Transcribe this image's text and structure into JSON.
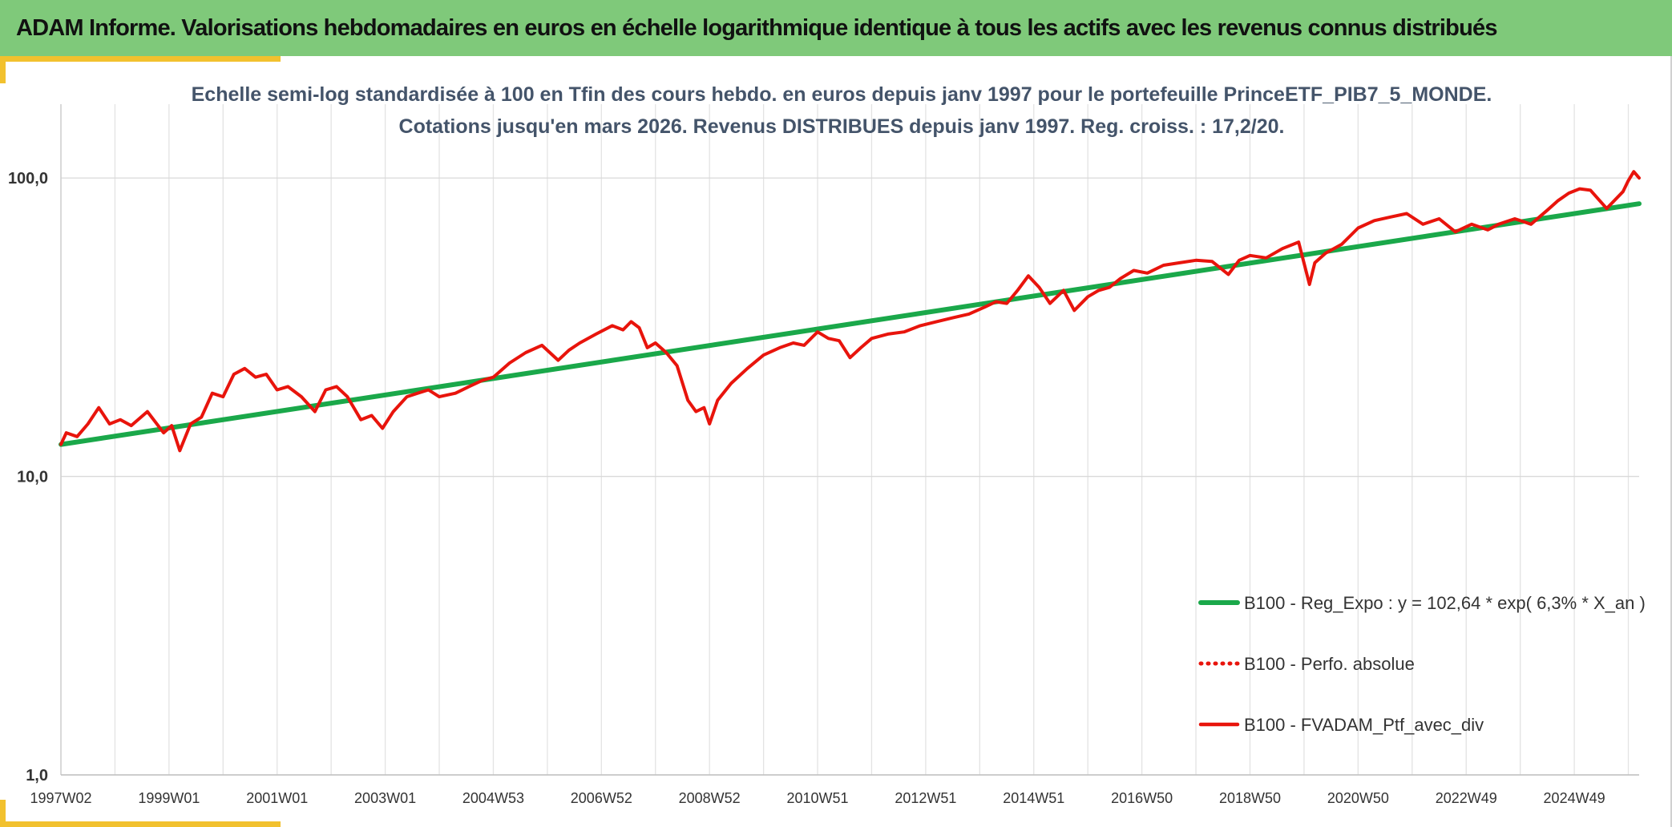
{
  "header": {
    "title": "ADAM Informe. Valorisations hebdomadaires en euros en échelle logarithmique identique à tous les actifs avec les revenus connus distribués"
  },
  "colors": {
    "header_bg": "#7fc97a",
    "accent": "#f2c12e",
    "regression": "#1aa84a",
    "series": "#e8140c",
    "title_text": "#44546a"
  },
  "chart_data": {
    "type": "line",
    "title_lines": [
      "Echelle semi-log standardisée à 100 en Tfin des cours hebdo. en euros depuis janv 1997 pour le portefeuille PrinceETF_PIB7_5_MONDE.",
      "Cotations jusqu'en mars 2026. Revenus DISTRIBUES depuis janv 1997. Reg. croiss. : 17,2/20."
    ],
    "y_scale": "log",
    "ylim": [
      1,
      200
    ],
    "y_ticks": [
      1,
      10,
      100
    ],
    "y_tick_labels": [
      "1,0",
      "10,0",
      "100,0"
    ],
    "x_range": [
      1997.0,
      2026.2
    ],
    "x_tick_positions": [
      1997.0,
      1999.0,
      2001.0,
      2003.0,
      2005.0,
      2007.0,
      2009.0,
      2011.0,
      2013.0,
      2015.0,
      2017.0,
      2019.0,
      2021.0,
      2023.0,
      2025.0
    ],
    "x_tick_labels": [
      "1997W02",
      "1999W01",
      "2001W01",
      "2003W01",
      "2004W53",
      "2006W52",
      "2008W52",
      "2010W51",
      "2012W51",
      "2014W51",
      "2016W50",
      "2018W50",
      "2020W50",
      "2022W49",
      "2024W49"
    ],
    "grid": "vertical",
    "legend_position": "bottom-right",
    "series": [
      {
        "name": "B100 - Reg_Expo : y = 102,64 * exp( 6,3% *  X_an )",
        "style": "solid-thick",
        "color": "#1aa84a",
        "x": [
          1997.0,
          2026.2
        ],
        "y": [
          12.8,
          82.0
        ]
      },
      {
        "name": "B100 - Perfo. absolue",
        "style": "dotted",
        "color": "#e8140c",
        "x": [],
        "y": []
      },
      {
        "name": "B100 - FVADAM_Ptf_avec_div",
        "style": "solid",
        "color": "#e8140c",
        "x": [
          1997.0,
          1997.1,
          1997.3,
          1997.5,
          1997.7,
          1997.9,
          1998.1,
          1998.3,
          1998.6,
          1998.75,
          1998.9,
          1999.05,
          1999.2,
          1999.4,
          1999.6,
          1999.8,
          2000.0,
          2000.2,
          2000.4,
          2000.6,
          2000.8,
          2001.0,
          2001.2,
          2001.45,
          2001.7,
          2001.9,
          2002.1,
          2002.3,
          2002.55,
          2002.75,
          2002.95,
          2003.15,
          2003.4,
          2003.6,
          2003.8,
          2004.0,
          2004.3,
          2004.55,
          2004.8,
          2005.0,
          2005.3,
          2005.6,
          2005.9,
          2006.2,
          2006.4,
          2006.6,
          2006.9,
          2007.2,
          2007.4,
          2007.55,
          2007.7,
          2007.85,
          2008.0,
          2008.2,
          2008.4,
          2008.6,
          2008.75,
          2008.9,
          2009.0,
          2009.15,
          2009.4,
          2009.7,
          2010.0,
          2010.3,
          2010.55,
          2010.75,
          2011.0,
          2011.2,
          2011.4,
          2011.6,
          2011.8,
          2012.0,
          2012.3,
          2012.6,
          2012.9,
          2013.2,
          2013.5,
          2013.8,
          2014.1,
          2014.3,
          2014.5,
          2014.7,
          2014.9,
          2015.1,
          2015.3,
          2015.55,
          2015.75,
          2016.0,
          2016.2,
          2016.4,
          2016.6,
          2016.85,
          2017.1,
          2017.4,
          2017.7,
          2018.0,
          2018.3,
          2018.6,
          2018.8,
          2019.0,
          2019.3,
          2019.6,
          2019.9,
          2020.1,
          2020.2,
          2020.4,
          2020.7,
          2021.0,
          2021.3,
          2021.6,
          2021.9,
          2022.2,
          2022.5,
          2022.8,
          2023.1,
          2023.4,
          2023.6,
          2023.9,
          2024.2,
          2024.5,
          2024.7,
          2024.9,
          2025.1,
          2025.3,
          2025.6,
          2025.9,
          2026.0,
          2026.1,
          2026.2
        ],
        "y": [
          12.8,
          14.0,
          13.6,
          15.0,
          17.0,
          15.0,
          15.5,
          14.8,
          16.5,
          15.2,
          14.0,
          14.8,
          12.2,
          15.0,
          15.8,
          19.0,
          18.5,
          22.0,
          23.0,
          21.5,
          22.0,
          19.5,
          20.0,
          18.5,
          16.5,
          19.5,
          20.0,
          18.5,
          15.5,
          16.0,
          14.5,
          16.5,
          18.5,
          19.0,
          19.5,
          18.5,
          19.0,
          20.0,
          21.0,
          21.5,
          24.0,
          26.0,
          27.5,
          24.5,
          26.5,
          28.0,
          30.0,
          32.0,
          31.0,
          33.0,
          31.5,
          27.0,
          28.0,
          26.0,
          23.5,
          18.0,
          16.5,
          17.0,
          15.0,
          18.0,
          20.5,
          23.0,
          25.5,
          27.0,
          28.0,
          27.5,
          30.5,
          29.0,
          28.5,
          25.0,
          27.0,
          29.0,
          30.0,
          30.5,
          32.0,
          33.0,
          34.0,
          35.0,
          37.0,
          38.5,
          38.0,
          42.0,
          47.0,
          43.0,
          38.0,
          42.0,
          36.0,
          40.0,
          42.0,
          43.0,
          46.0,
          49.0,
          48.0,
          51.0,
          52.0,
          53.0,
          52.5,
          47.5,
          53.0,
          55.0,
          54.0,
          58.0,
          61.0,
          44.0,
          52.0,
          56.0,
          60.0,
          68.0,
          72.0,
          74.0,
          76.0,
          70.0,
          73.0,
          66.0,
          70.0,
          67.0,
          70.0,
          73.0,
          70.0,
          78.0,
          84.0,
          89.0,
          92.0,
          91.0,
          79.0,
          90.0,
          98.0,
          105.0,
          100.0
        ]
      }
    ]
  }
}
